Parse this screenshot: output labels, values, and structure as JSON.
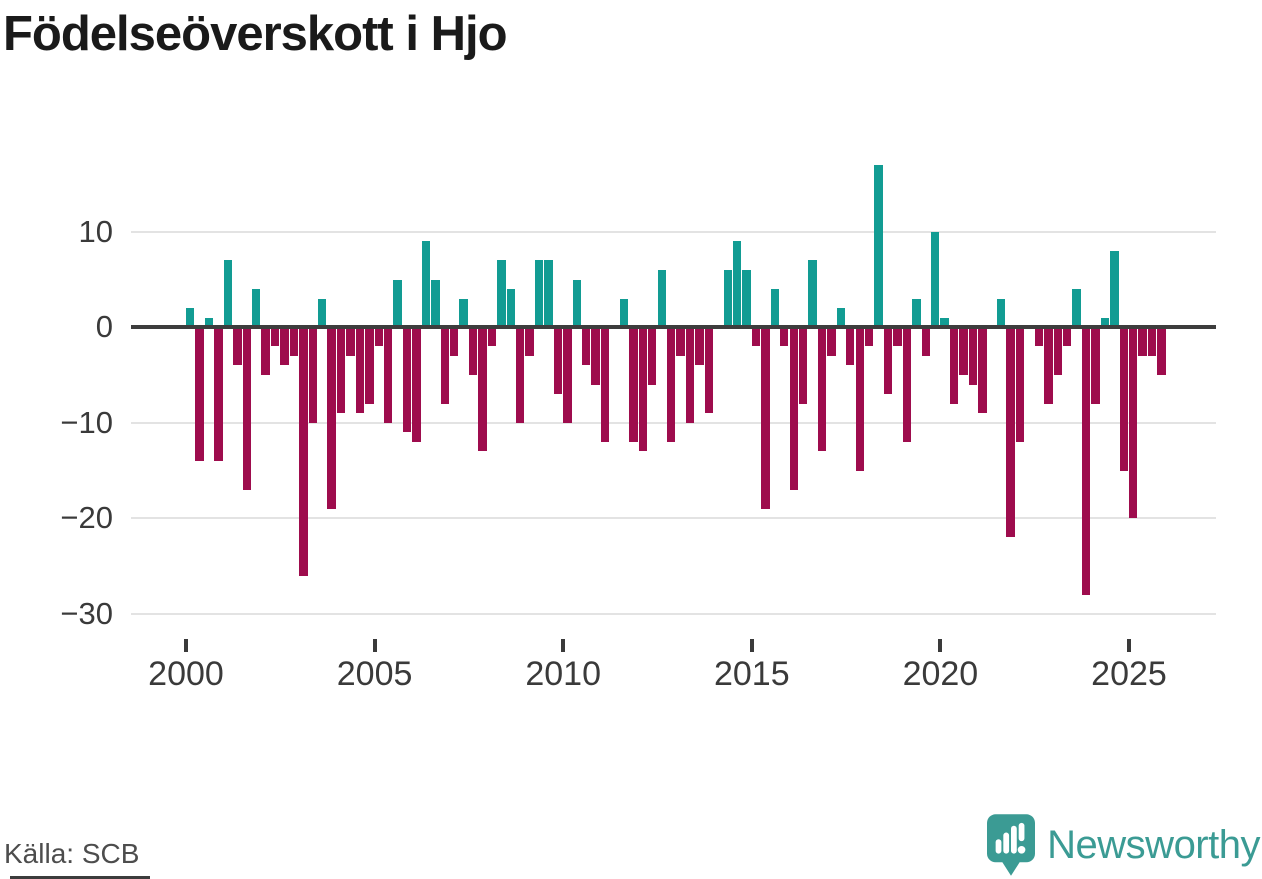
{
  "title": "Födelseöverskott i Hjo",
  "source": "Källa: SCB",
  "branding": {
    "name": "Newsworthy",
    "icon": "newsworthy-pin-logo"
  },
  "colors": {
    "positive_bar": "#129c93",
    "negative_bar": "#9e0c4d",
    "zero_line": "#3d3d3d",
    "gridline": "#e3e3e3",
    "axis_text": "#3a3a3a",
    "title_text": "#1a1a1a",
    "source_text": "#4d4d4d",
    "brand_teal": "#3b9b94"
  },
  "chart_data": {
    "type": "bar",
    "title": "Födelseöverskott i Hjo",
    "xlabel": "",
    "ylabel": "",
    "x_unit": "quarter",
    "grid": true,
    "legend": false,
    "ylim": [
      -30,
      18
    ],
    "y_tick_values": [
      10,
      0,
      -10,
      -20,
      -30
    ],
    "y_tick_labels": [
      "10",
      "0",
      "−10",
      "−20",
      "−30"
    ],
    "x_tick_years": [
      "2000",
      "2005",
      "2010",
      "2015",
      "2020",
      "2025"
    ],
    "categories": [
      "2000 Q1",
      "2000 Q2",
      "2000 Q3",
      "2000 Q4",
      "2001 Q1",
      "2001 Q2",
      "2001 Q3",
      "2001 Q4",
      "2002 Q1",
      "2002 Q2",
      "2002 Q3",
      "2002 Q4",
      "2003 Q1",
      "2003 Q2",
      "2003 Q3",
      "2003 Q4",
      "2004 Q1",
      "2004 Q2",
      "2004 Q3",
      "2004 Q4",
      "2005 Q1",
      "2005 Q2",
      "2005 Q3",
      "2005 Q4",
      "2006 Q1",
      "2006 Q2",
      "2006 Q3",
      "2006 Q4",
      "2007 Q1",
      "2007 Q2",
      "2007 Q3",
      "2007 Q4",
      "2008 Q1",
      "2008 Q2",
      "2008 Q3",
      "2008 Q4",
      "2009 Q1",
      "2009 Q2",
      "2009 Q3",
      "2009 Q4",
      "2010 Q1",
      "2010 Q2",
      "2010 Q3",
      "2010 Q4",
      "2011 Q1",
      "2011 Q2",
      "2011 Q3",
      "2011 Q4",
      "2012 Q1",
      "2012 Q2",
      "2012 Q3",
      "2012 Q4",
      "2013 Q1",
      "2013 Q2",
      "2013 Q3",
      "2013 Q4",
      "2014 Q1",
      "2014 Q2",
      "2014 Q3",
      "2014 Q4",
      "2015 Q1",
      "2015 Q2",
      "2015 Q3",
      "2015 Q4",
      "2016 Q1",
      "2016 Q2",
      "2016 Q3",
      "2016 Q4",
      "2017 Q1",
      "2017 Q2",
      "2017 Q3",
      "2017 Q4",
      "2018 Q1",
      "2018 Q2",
      "2018 Q3",
      "2018 Q4",
      "2019 Q1",
      "2019 Q2",
      "2019 Q3",
      "2019 Q4",
      "2020 Q1",
      "2020 Q2",
      "2020 Q3",
      "2020 Q4",
      "2021 Q1",
      "2021 Q2",
      "2021 Q3",
      "2021 Q4",
      "2022 Q1",
      "2022 Q2",
      "2022 Q3",
      "2022 Q4",
      "2023 Q1",
      "2023 Q2",
      "2023 Q3",
      "2023 Q4",
      "2024 Q1",
      "2024 Q2",
      "2024 Q3",
      "2024 Q4",
      "2025 Q1",
      "2025 Q2",
      "2025 Q3",
      "2025 Q4"
    ],
    "values": [
      2,
      -14,
      1,
      -14,
      7,
      -4,
      -17,
      4,
      -5,
      -2,
      -4,
      -3,
      -26,
      -10,
      3,
      -19,
      -9,
      -3,
      -9,
      -8,
      -2,
      -10,
      5,
      -11,
      -12,
      9,
      5,
      -8,
      -3,
      3,
      -5,
      -13,
      -2,
      7,
      4,
      -10,
      -3,
      7,
      7,
      -7,
      -10,
      5,
      -4,
      -6,
      -12,
      0,
      3,
      -12,
      -13,
      -6,
      6,
      -12,
      -3,
      -10,
      -4,
      -9,
      0,
      6,
      9,
      6,
      -2,
      -19,
      4,
      -2,
      -17,
      -8,
      7,
      -13,
      -3,
      2,
      -4,
      -15,
      -2,
      17,
      -7,
      -2,
      -12,
      3,
      -3,
      10,
      1,
      -8,
      -5,
      -6,
      -9,
      0,
      3,
      -22,
      -12,
      0,
      -2,
      -8,
      -5,
      -2,
      4,
      -28,
      -8,
      1,
      8,
      -15,
      -20,
      -3,
      -3,
      -5
    ]
  }
}
